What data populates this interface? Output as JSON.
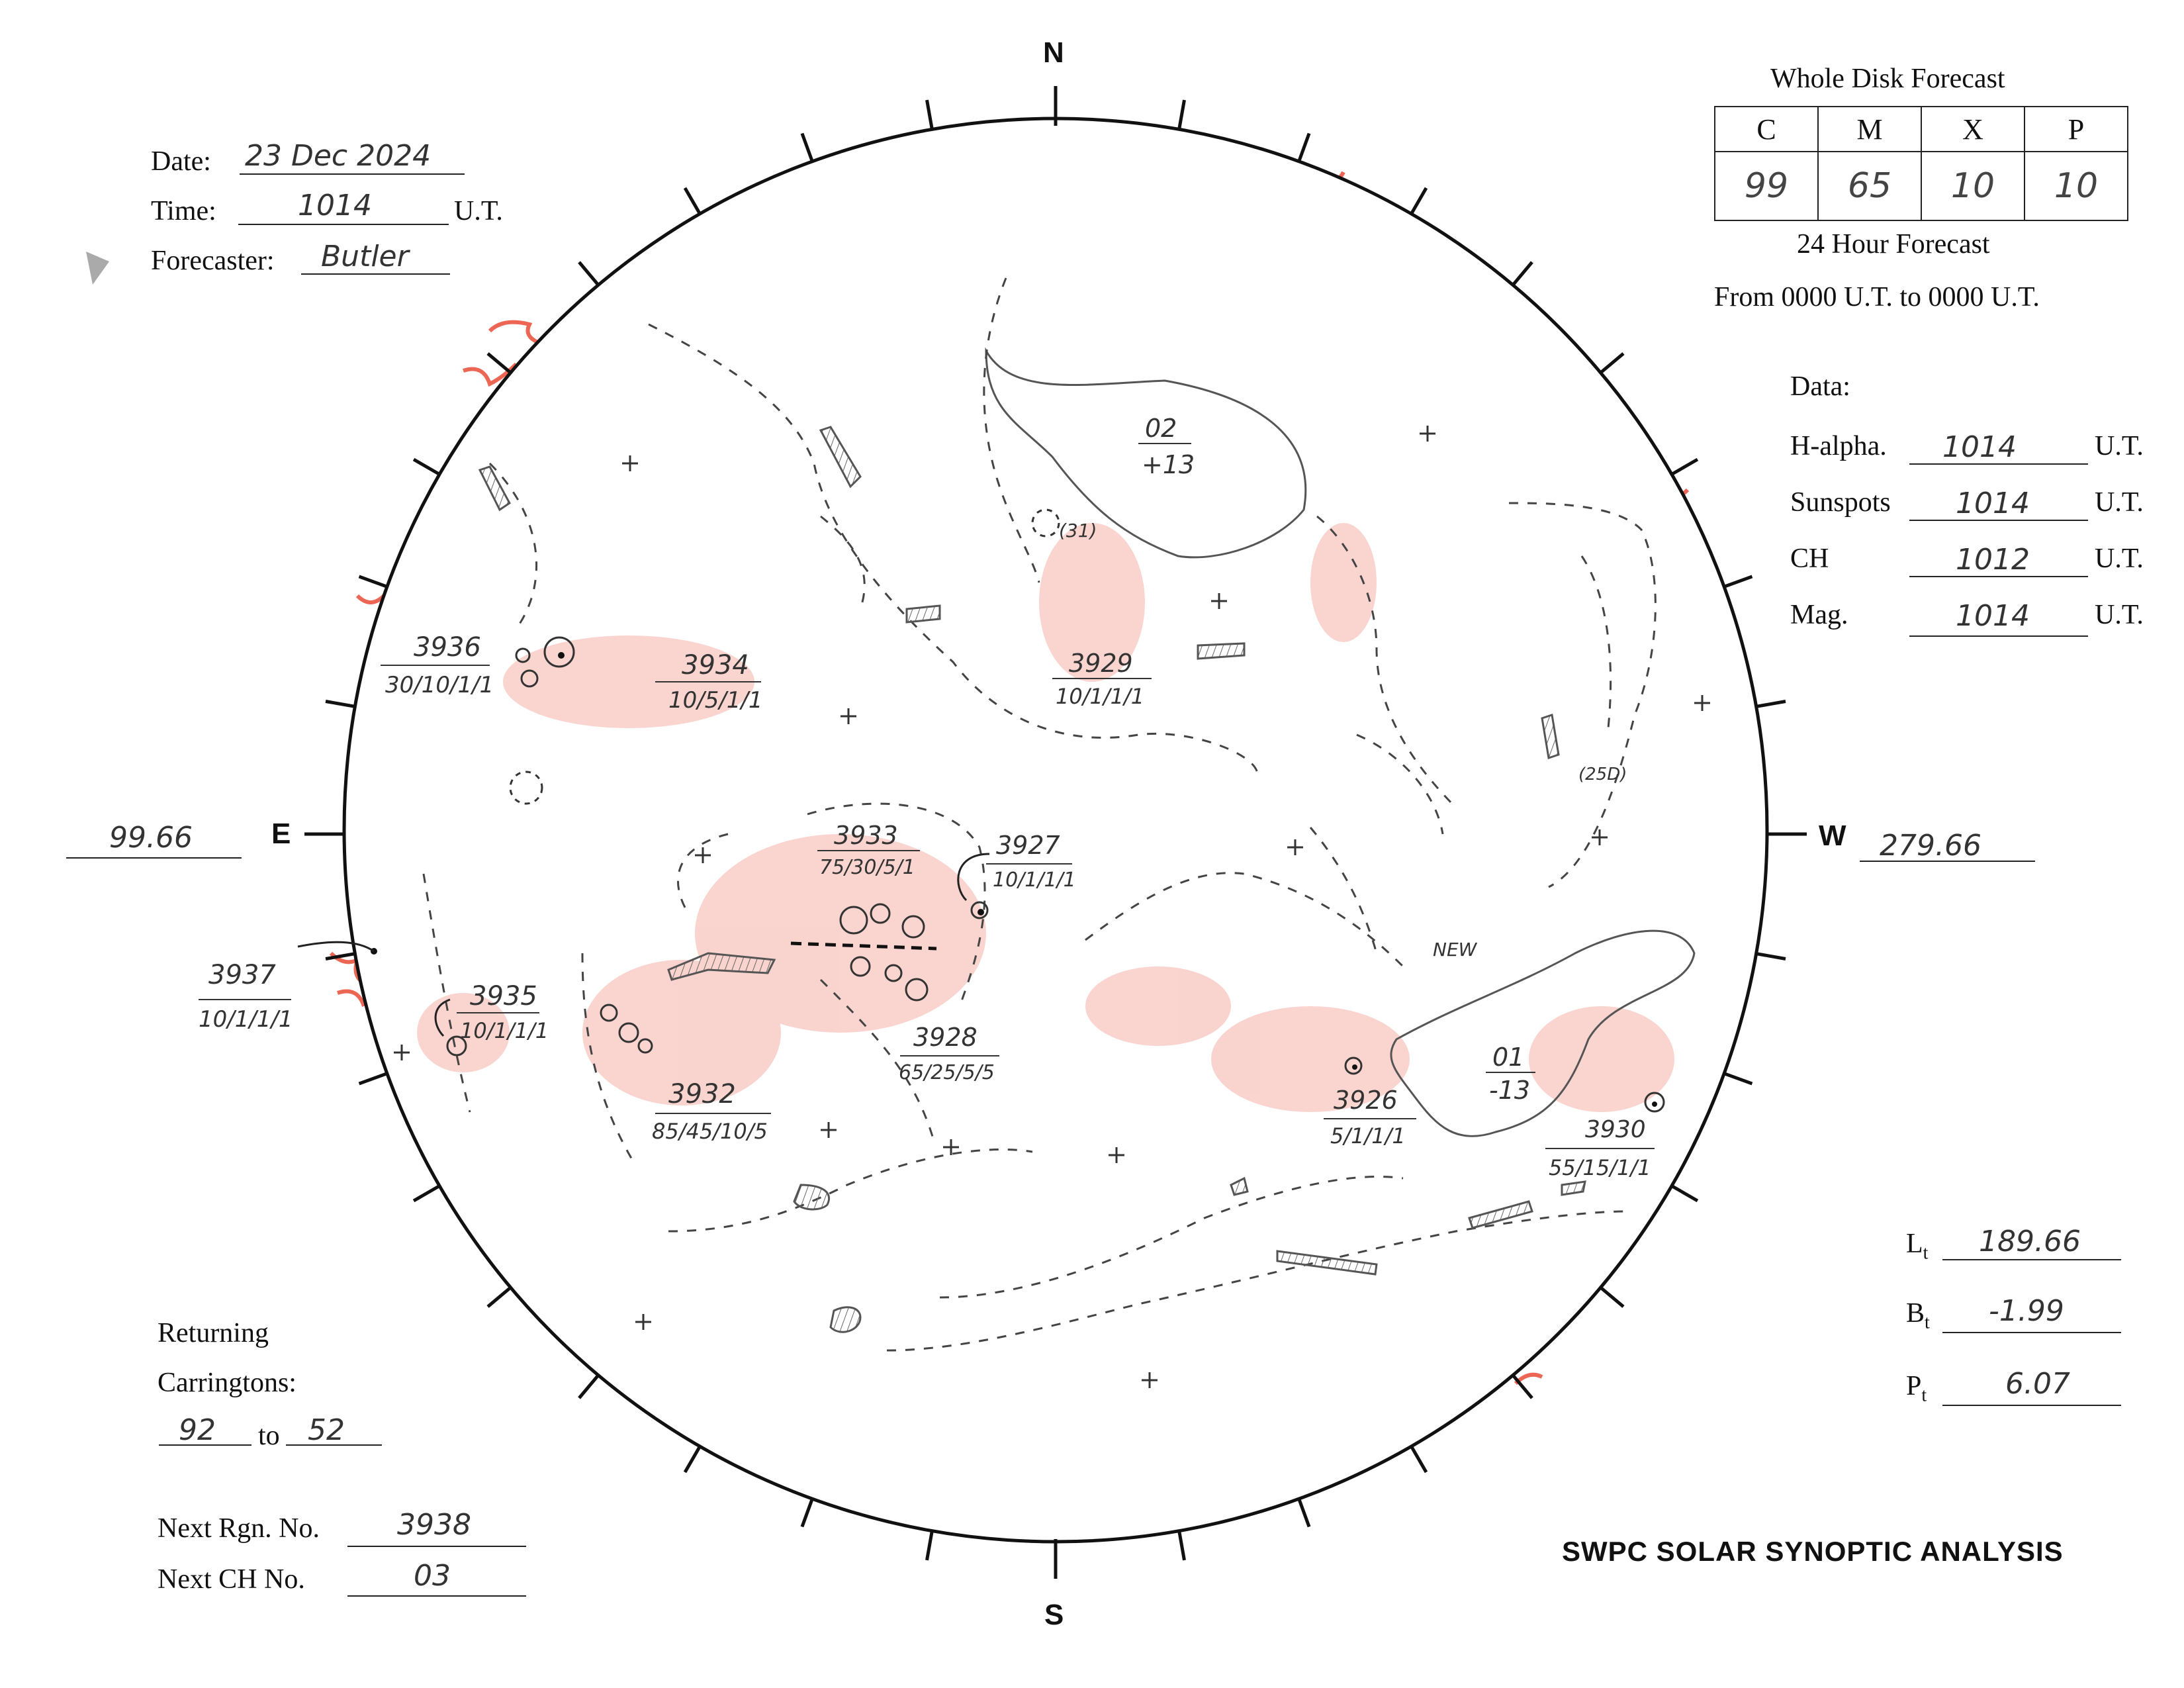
{
  "header": {
    "date_label": "Date:",
    "date_value": "23 Dec 2024",
    "time_label": "Time:",
    "time_value": "1014",
    "time_unit": "U.T.",
    "forecaster_label": "Forecaster:",
    "forecaster_value": "Butler"
  },
  "forecast": {
    "title": "Whole Disk Forecast",
    "columns": [
      "C",
      "M",
      "X",
      "P"
    ],
    "values": [
      "99",
      "65",
      "10",
      "10"
    ],
    "subtitle": "24 Hour Forecast",
    "range": "From 0000 U.T. to 0000 U.T."
  },
  "data_panel": {
    "title": "Data:",
    "rows": [
      {
        "label": "H-alpha.",
        "value": "1014",
        "unit": "U.T."
      },
      {
        "label": "Sunspots",
        "value": "1014",
        "unit": "U.T."
      },
      {
        "label": "CH",
        "value": "1012",
        "unit": "U.T."
      },
      {
        "label": "Mag.",
        "value": "1014",
        "unit": "U.T."
      }
    ]
  },
  "compass": {
    "north": "N",
    "south": "S",
    "east": "E",
    "west": "W",
    "east_longitude": "99.66",
    "west_longitude": "279.66"
  },
  "regions": [
    {
      "number": "3936",
      "class": "30/10/1/1"
    },
    {
      "number": "3934",
      "class": "10/5/1/1"
    },
    {
      "number": "3929",
      "class": "10/1/1/1"
    },
    {
      "number": "3933",
      "class": "75/30/5/1"
    },
    {
      "number": "3927",
      "class": "10/1/1/1"
    },
    {
      "number": "3937",
      "class": "10/1/1/1"
    },
    {
      "number": "3935",
      "class": "10/1/1/1"
    },
    {
      "number": "3928",
      "class": "65/25/5/5"
    },
    {
      "number": "3932",
      "class": "85/45/10/5"
    },
    {
      "number": "3926",
      "class": "5/1/1/1"
    },
    {
      "number": "3930",
      "class": "55/15/1/1"
    }
  ],
  "coronal_holes": [
    {
      "number": "02",
      "polarity": "+13"
    },
    {
      "number": "01",
      "polarity": "-13"
    }
  ],
  "annotations": {
    "note_31": "(31)",
    "note_25d": "(25D)",
    "note_new": "NEW"
  },
  "orientation": {
    "lt_label": "L",
    "lt_sub": "t",
    "lt_value": "189.66",
    "bt_label": "B",
    "bt_sub": "t",
    "bt_value": "-1.99",
    "pt_label": "P",
    "pt_sub": "t",
    "pt_value": "6.07"
  },
  "returning": {
    "label1": "Returning",
    "label2": "Carringtons:",
    "from": "92",
    "to_label": "to",
    "to": "52"
  },
  "next_numbers": {
    "region_label": "Next Rgn. No.",
    "region_value": "3938",
    "ch_label": "Next CH No.",
    "ch_value": "03"
  },
  "footer_title": "SWPC SOLAR SYNOPTIC ANALYSIS",
  "colors": {
    "plage": "#e8402a",
    "ink": "#222222",
    "pencil": "#555555"
  }
}
